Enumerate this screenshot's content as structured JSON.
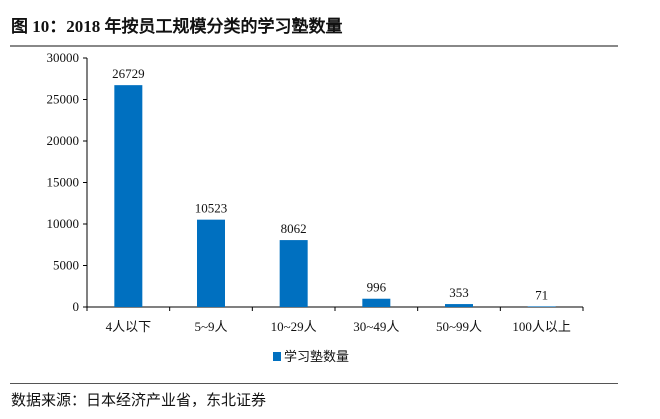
{
  "title": "图 10：2018 年按员工规模分类的学习塾数量",
  "source": "数据来源：日本经济产业省，东北证券",
  "chart_data": {
    "type": "bar",
    "title": "图 10：2018 年按员工规模分类的学习塾数量",
    "categories": [
      "4人以下",
      "5~9人",
      "10~29人",
      "30~49人",
      "50~99人",
      "100人以上"
    ],
    "series": [
      {
        "name": "学习塾数量",
        "values": [
          26729,
          10523,
          8062,
          996,
          353,
          71
        ],
        "color": "#0070C0"
      }
    ],
    "ylim": [
      0,
      30000
    ],
    "yticks": [
      0,
      5000,
      10000,
      15000,
      20000,
      25000,
      30000
    ],
    "xlabel": "",
    "ylabel": "",
    "grid": false,
    "legend": "bottom"
  }
}
